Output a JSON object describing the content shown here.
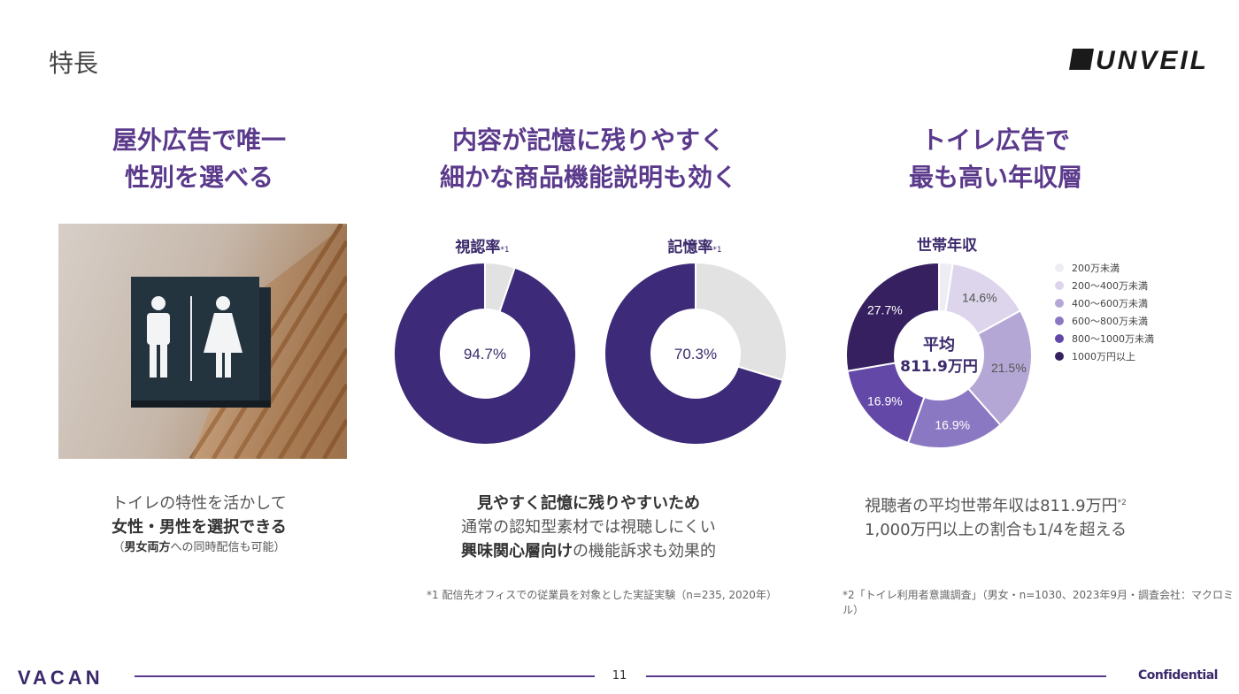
{
  "header": {
    "title": "特長",
    "logo_text": "UNVEIL"
  },
  "columns": [
    {
      "heading_line1": "屋外広告で唯一",
      "heading_line2": "性別を選べる",
      "desc_line1": "トイレの特性を活かして",
      "desc_line2_bold": "女性・男性を選択できる",
      "desc_line3_bold": "男女両方",
      "desc_line3_rest": "への同時配信も可能",
      "desc_line3_open": "（",
      "desc_line3_close": "）"
    },
    {
      "heading_line1": "内容が記憶に残りやすく",
      "heading_line2": "細かな商品機能説明も効く",
      "donut1_label": "視認率",
      "donut1_note": "*1",
      "donut1_value": "94.7%",
      "donut2_label": "記憶率",
      "donut2_note": "*1",
      "donut2_value": "70.3%",
      "desc_line1_bold": "見やすく記憶に残りやすいため",
      "desc_line2": "通常の認知型素材では視聴しにくい",
      "desc_line3_bold": "興味関心層向け",
      "desc_line3_rest": "の機能訴求も効果的",
      "footnote": "*1 配信先オフィスでの従業員を対象とした実証実験（n=235, 2020年）"
    },
    {
      "heading_line1": "トイレ広告で",
      "heading_line2": "最も高い年収層",
      "chart_title": "世帯年収",
      "center_line1": "平均",
      "center_line2": "811.9万円",
      "desc_line1": "視聴者の平均世帯年収は811.9万円",
      "desc_line1_note": "*2",
      "desc_line2": "1,000万円以上の割合も1/4を超える",
      "footnote": "*2「トイレ利用者意識調査」（男女・n=1030、2023年9月・調査会社：マクロミル）"
    }
  ],
  "chart_data": [
    {
      "type": "pie",
      "title": "視認率",
      "values": [
        94.7,
        5.3
      ],
      "colors": [
        "#3d2a78",
        "#e2e2e2"
      ]
    },
    {
      "type": "pie",
      "title": "記憶率",
      "values": [
        70.3,
        29.7
      ],
      "colors": [
        "#3d2a78",
        "#e2e2e2"
      ]
    },
    {
      "type": "pie",
      "title": "世帯年収",
      "categories": [
        "200万未満",
        "200〜400万未満",
        "400〜600万未満",
        "600〜800万未満",
        "800〜1000万未満",
        "1000万円以上"
      ],
      "values": [
        2.4,
        14.6,
        21.5,
        16.9,
        16.9,
        27.7
      ],
      "labels": [
        "",
        "14.6%",
        "21.5%",
        "16.9%",
        "16.9%",
        "27.7%"
      ],
      "colors": [
        "#efedf4",
        "#dcd5ec",
        "#b4a7d6",
        "#8b78c2",
        "#6448a8",
        "#36205f"
      ],
      "legend": "right"
    }
  ],
  "footer": {
    "brand": "VACAN",
    "page_number": "11",
    "confidential": "Confidential"
  }
}
